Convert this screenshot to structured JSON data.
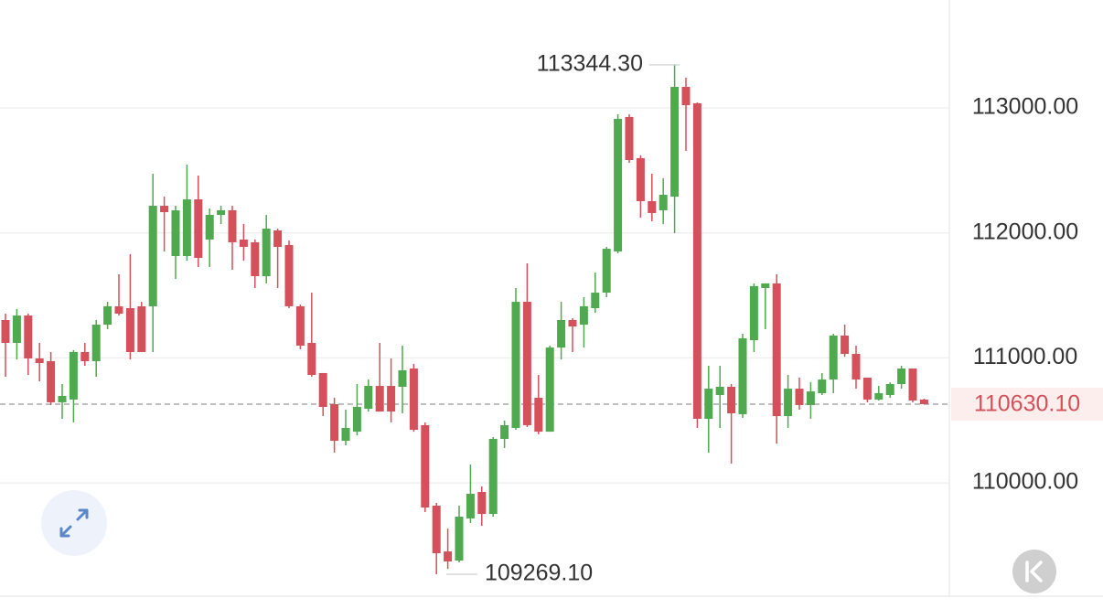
{
  "chart_data": {
    "type": "candlestick",
    "up_color": "#4fa94f",
    "down_color": "#d4505a",
    "open": [
      111303,
      111120,
      111339,
      110996,
      110974,
      110645,
      110667,
      111047,
      110974,
      111266,
      111413,
      111398,
      111413,
      111413,
      112217,
      111815,
      111815,
      112268,
      111947,
      112144,
      112181,
      111947,
      111925,
      111654,
      112020,
      111903,
      111413,
      111120,
      110879,
      110630,
      110337,
      110410,
      110593,
      110776,
      110776,
      110769,
      110915,
      110462,
      109818,
      109452,
      109379,
      109716,
      109928,
      109752,
      110352,
      110440,
      111449,
      110681,
      110410,
      111083,
      111303,
      111266,
      111398,
      111522,
      111852,
      112927,
      112598,
      112254,
      112181,
      112290,
      113168,
      113037,
      110513,
      110703,
      110769,
      110549,
      111142,
      111559,
      111596,
      110535,
      110754,
      110623,
      110718,
      110827,
      111179,
      111032,
      110842,
      110667,
      110703,
      110791,
      110915,
      110667
    ],
    "high": [
      111354,
      111391,
      111354,
      111120,
      111047,
      110791,
      111062,
      111120,
      111303,
      111449,
      111669,
      111830,
      111449,
      112473,
      112290,
      112217,
      112546,
      112459,
      112195,
      112217,
      112217,
      112071,
      111947,
      112144,
      112034,
      111939,
      111427,
      111522,
      110879,
      110681,
      110586,
      110791,
      110827,
      111120,
      110996,
      111098,
      110952,
      110484,
      109840,
      109635,
      109818,
      110147,
      109972,
      110367,
      110498,
      111559,
      111756,
      110864,
      111098,
      111449,
      111318,
      111486,
      111683,
      111888,
      112949,
      112949,
      112620,
      112473,
      112437,
      113344.3,
      113241,
      113044,
      110937,
      110937,
      110791,
      111193,
      111596,
      111596,
      111669,
      110864,
      110842,
      110805,
      110879,
      111193,
      111266,
      111098,
      110842,
      110776,
      110805,
      110937,
      110915,
      110674
    ],
    "low": [
      110849,
      110988,
      110864,
      110813,
      110623,
      110513,
      110484,
      110937,
      110849,
      111230,
      111339,
      110988,
      111047,
      111047,
      111852,
      111632,
      111778,
      111727,
      111727,
      112071,
      111705,
      111778,
      111559,
      111596,
      111559,
      111398,
      111069,
      110849,
      110535,
      110242,
      110301,
      110381,
      110571,
      110571,
      110484,
      110557,
      110410,
      109767,
      109269.1,
      109313,
      109364,
      109679,
      109657,
      109730,
      110279,
      110425,
      110447,
      110389,
      110410,
      110988,
      111047,
      111083,
      111361,
      111486,
      111837,
      112561,
      112122,
      112093,
      112071,
      111998,
      112656,
      110440,
      110242,
      110440,
      110155,
      110520,
      111047,
      111230,
      110315,
      110440,
      110586,
      110513,
      110703,
      110718,
      111010,
      110754,
      110645,
      110659,
      110681,
      110754,
      110645,
      110630.1
    ],
    "close": [
      111120,
      111339,
      110996,
      110959,
      110645,
      110696,
      111047,
      110974,
      111266,
      111413,
      111354,
      111047,
      111047,
      112217,
      112166,
      112181,
      112268,
      111800,
      112144,
      112181,
      111925,
      111888,
      111654,
      112034,
      111888,
      111413,
      111098,
      110864,
      110608,
      110337,
      110440,
      110608,
      110776,
      110571,
      110571,
      110901,
      110425,
      109803,
      109438,
      109372,
      109730,
      109913,
      109752,
      110352,
      110462,
      111449,
      110462,
      110410,
      111083,
      111303,
      111252,
      111413,
      111522,
      111873,
      112912,
      112583,
      112254,
      112159,
      112305,
      113168,
      113022,
      110513,
      110754,
      110769,
      110557,
      111157,
      111574,
      111596,
      110535,
      110754,
      110623,
      110732,
      110827,
      111179,
      111032,
      110827,
      110667,
      110718,
      110791,
      110915,
      110659,
      110630.1
    ],
    "ylim": [
      109094,
      113863
    ],
    "yticks": [
      {
        "value": 110000,
        "label": "110000.00"
      },
      {
        "value": 111000,
        "label": "111000.00"
      },
      {
        "value": 112000,
        "label": "112000.00"
      },
      {
        "value": 113000,
        "label": "113000.00"
      }
    ],
    "grid": true,
    "last_price": {
      "value": 110630.1,
      "label": "110630.10"
    },
    "max_label": {
      "value": 113344.3,
      "label": "113344.30"
    },
    "min_label": {
      "value": 109269.1,
      "label": "109269.10"
    }
  }
}
